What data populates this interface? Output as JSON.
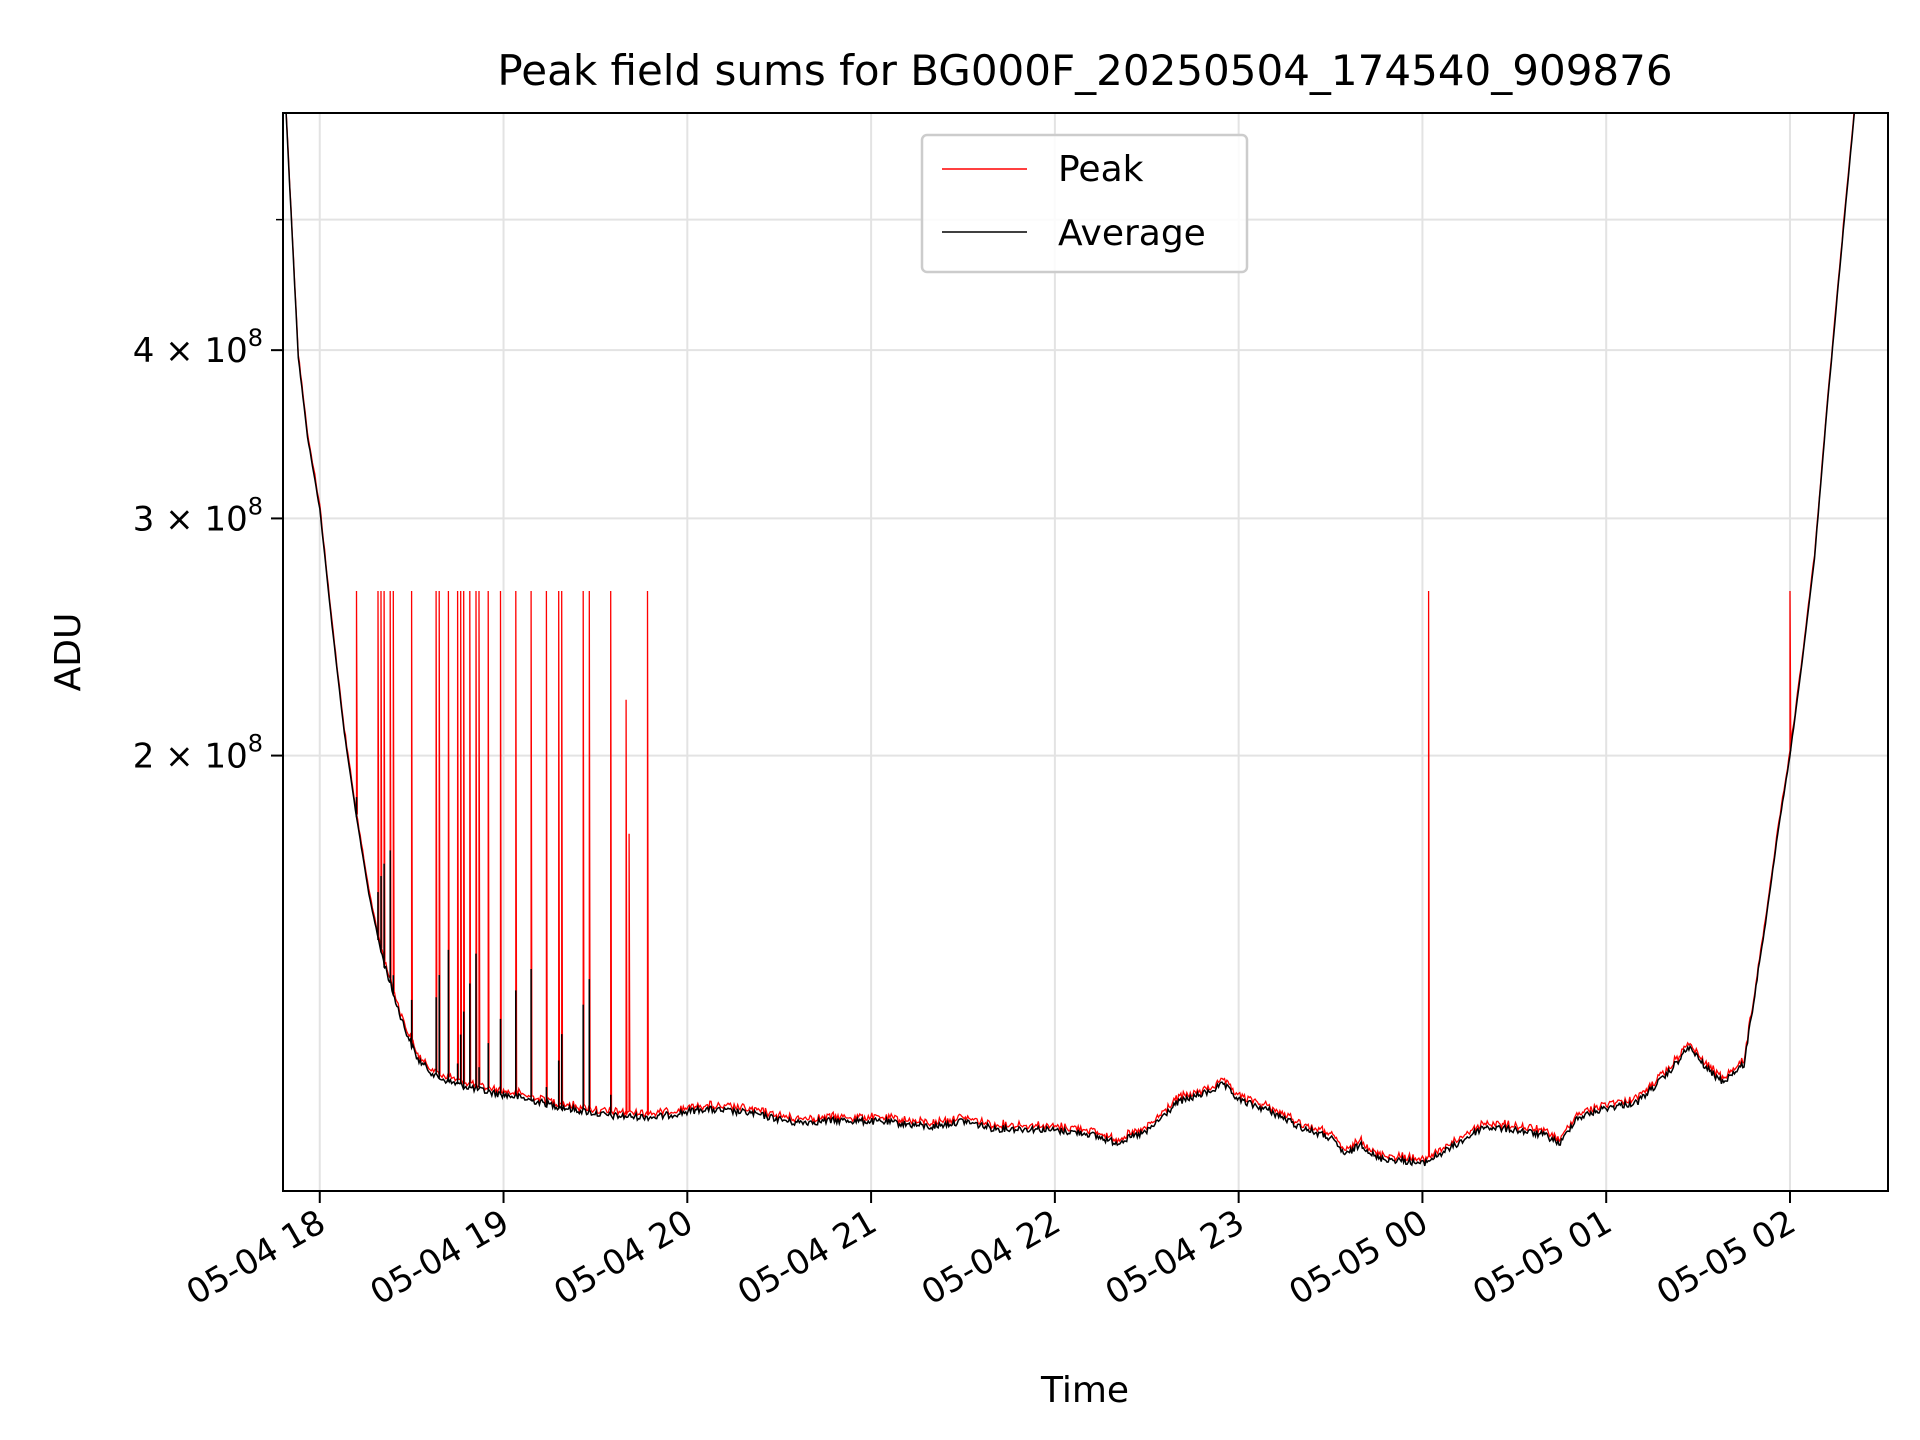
{
  "chart_data": {
    "type": "line",
    "title": "Peak field sums for BG000F_20250504_174540_909876",
    "xlabel": "Time",
    "ylabel": "ADU",
    "y_scale": "log",
    "ylim": [
      95000000,
      600000000
    ],
    "xlim": [
      "2025-05-04 17:48",
      "2025-05-05 02:32"
    ],
    "grid": true,
    "legend_position": "top-center",
    "x_ticks": [
      {
        "t": "2025-05-04 18:00",
        "label": "05-04 18"
      },
      {
        "t": "2025-05-04 19:00",
        "label": "05-04 19"
      },
      {
        "t": "2025-05-04 20:00",
        "label": "05-04 20"
      },
      {
        "t": "2025-05-04 21:00",
        "label": "05-04 21"
      },
      {
        "t": "2025-05-04 22:00",
        "label": "05-04 22"
      },
      {
        "t": "2025-05-04 23:00",
        "label": "05-04 23"
      },
      {
        "t": "2025-05-05 00:00",
        "label": "05-05 00"
      },
      {
        "t": "2025-05-05 01:00",
        "label": "05-05 01"
      },
      {
        "t": "2025-05-05 02:00",
        "label": "05-05 02"
      }
    ],
    "y_ticks": [
      {
        "value": 200000000,
        "mantissa": "2",
        "base": "10",
        "exp": "8"
      },
      {
        "value": 300000000,
        "mantissa": "3",
        "base": "10",
        "exp": "8"
      },
      {
        "value": 400000000,
        "mantissa": "4",
        "base": "10",
        "exp": "8"
      }
    ],
    "series": [
      {
        "name": "Average",
        "color": "#000000",
        "points": [
          [
            "2025-05-04 17:49",
            600000000
          ],
          [
            "2025-05-04 17:53",
            395000000
          ],
          [
            "2025-05-04 17:56",
            345000000
          ],
          [
            "2025-05-04 18:00",
            305000000
          ],
          [
            "2025-05-04 18:04",
            250000000
          ],
          [
            "2025-05-04 18:08",
            208000000
          ],
          [
            "2025-05-04 18:12",
            180000000
          ],
          [
            "2025-05-04 18:16",
            158000000
          ],
          [
            "2025-05-04 18:20",
            143000000
          ],
          [
            "2025-05-04 18:24",
            133000000
          ],
          [
            "2025-05-04 18:28",
            125000000
          ],
          [
            "2025-05-04 18:32",
            119000000
          ],
          [
            "2025-05-04 18:38",
            115500000
          ],
          [
            "2025-05-04 18:45",
            114000000
          ],
          [
            "2025-05-04 18:55",
            112500000
          ],
          [
            "2025-05-04 19:05",
            111500000
          ],
          [
            "2025-05-04 19:20",
            109500000
          ],
          [
            "2025-05-04 19:35",
            108000000
          ],
          [
            "2025-05-04 19:50",
            107800000
          ],
          [
            "2025-05-04 20:05",
            109300000
          ],
          [
            "2025-05-04 20:20",
            108600000
          ],
          [
            "2025-05-04 20:35",
            106800000
          ],
          [
            "2025-05-04 20:50",
            107200000
          ],
          [
            "2025-05-04 21:05",
            106900000
          ],
          [
            "2025-05-04 21:20",
            106000000
          ],
          [
            "2025-05-04 21:30",
            107100000
          ],
          [
            "2025-05-04 21:40",
            105700000
          ],
          [
            "2025-05-04 21:55",
            105600000
          ],
          [
            "2025-05-04 22:10",
            104900000
          ],
          [
            "2025-05-04 22:20",
            103200000
          ],
          [
            "2025-05-04 22:30",
            105100000
          ],
          [
            "2025-05-04 22:40",
            110500000
          ],
          [
            "2025-05-04 22:50",
            112500000
          ],
          [
            "2025-05-04 22:55",
            114000000
          ],
          [
            "2025-05-04 23:00",
            111000000
          ],
          [
            "2025-05-04 23:10",
            109000000
          ],
          [
            "2025-05-04 23:20",
            106000000
          ],
          [
            "2025-05-04 23:30",
            104000000
          ],
          [
            "2025-05-04 23:35",
            101000000
          ],
          [
            "2025-05-04 23:40",
            103000000
          ],
          [
            "2025-05-04 23:45",
            100500000
          ],
          [
            "2025-05-04 23:55",
            100000000
          ],
          [
            "2025-05-05 00:00",
            99500000
          ],
          [
            "2025-05-05 00:10",
            102500000
          ],
          [
            "2025-05-05 00:20",
            106000000
          ],
          [
            "2025-05-05 00:30",
            105500000
          ],
          [
            "2025-05-05 00:40",
            104500000
          ],
          [
            "2025-05-05 00:45",
            103000000
          ],
          [
            "2025-05-05 00:50",
            107500000
          ],
          [
            "2025-05-05 01:00",
            109500000
          ],
          [
            "2025-05-05 01:10",
            110500000
          ],
          [
            "2025-05-05 01:20",
            116000000
          ],
          [
            "2025-05-05 01:27",
            121500000
          ],
          [
            "2025-05-05 01:33",
            117000000
          ],
          [
            "2025-05-05 01:38",
            114500000
          ],
          [
            "2025-05-05 01:45",
            118000000
          ],
          [
            "2025-05-05 01:52",
            150000000
          ],
          [
            "2025-05-05 01:56",
            175000000
          ],
          [
            "2025-05-05 02:00",
            200000000
          ],
          [
            "2025-05-05 02:04",
            235000000
          ],
          [
            "2025-05-05 02:08",
            280000000
          ],
          [
            "2025-05-05 02:12",
            360000000
          ],
          [
            "2025-05-05 02:17",
            480000000
          ],
          [
            "2025-05-05 02:21",
            600000000
          ]
        ]
      },
      {
        "name": "Peak",
        "color": "#ff0000",
        "spikes": [
          [
            "2025-05-04 18:12",
            265000000
          ],
          [
            "2025-05-04 18:19",
            265000000
          ],
          [
            "2025-05-04 18:20",
            265000000
          ],
          [
            "2025-05-04 18:21",
            265000000
          ],
          [
            "2025-05-04 18:23",
            265000000
          ],
          [
            "2025-05-04 18:24",
            265000000
          ],
          [
            "2025-05-04 18:30",
            265000000
          ],
          [
            "2025-05-04 18:38",
            265000000
          ],
          [
            "2025-05-04 18:39",
            265000000
          ],
          [
            "2025-05-04 18:42",
            265000000
          ],
          [
            "2025-05-04 18:45",
            265000000
          ],
          [
            "2025-05-04 18:46",
            265000000
          ],
          [
            "2025-05-04 18:47",
            265000000
          ],
          [
            "2025-05-04 18:49",
            265000000
          ],
          [
            "2025-05-04 18:51",
            265000000
          ],
          [
            "2025-05-04 18:52",
            265000000
          ],
          [
            "2025-05-04 18:55",
            265000000
          ],
          [
            "2025-05-04 18:59",
            265000000
          ],
          [
            "2025-05-04 19:04",
            265000000
          ],
          [
            "2025-05-04 19:09",
            265000000
          ],
          [
            "2025-05-04 19:14",
            265000000
          ],
          [
            "2025-05-04 19:18",
            265000000
          ],
          [
            "2025-05-04 19:19",
            265000000
          ],
          [
            "2025-05-04 19:26",
            265000000
          ],
          [
            "2025-05-04 19:28",
            265000000
          ],
          [
            "2025-05-04 19:35",
            265000000
          ],
          [
            "2025-05-04 19:40",
            220000000
          ],
          [
            "2025-05-04 19:41",
            175000000
          ],
          [
            "2025-05-04 19:47",
            265000000
          ],
          [
            "2025-05-05 00:02",
            265000000
          ],
          [
            "2025-05-05 02:00",
            265000000
          ]
        ]
      }
    ]
  }
}
